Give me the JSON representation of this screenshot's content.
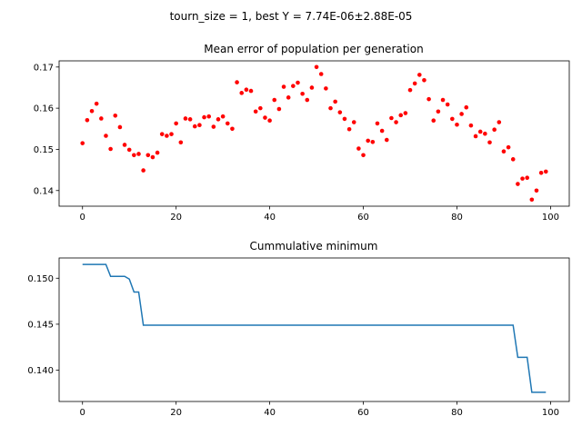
{
  "figure": {
    "suptitle": "tourn_size = 1, best Y = 7.74E-06±2.88E-05"
  },
  "chart_data": [
    {
      "type": "scatter",
      "title": "Mean error of population per generation",
      "xlabel": "",
      "ylabel": "",
      "xlim": [
        -5,
        104
      ],
      "ylim": [
        0.1362,
        0.1715
      ],
      "xticks": [
        0,
        20,
        40,
        60,
        80,
        100
      ],
      "yticks": [
        0.14,
        0.15,
        0.16,
        0.17
      ],
      "ytick_labels": [
        "0.14",
        "0.15",
        "0.16",
        "0.17"
      ],
      "marker_color": "#ff0000",
      "grid": false,
      "x": [
        0,
        1,
        2,
        3,
        4,
        5,
        6,
        7,
        8,
        9,
        10,
        11,
        12,
        13,
        14,
        15,
        16,
        17,
        18,
        19,
        20,
        21,
        22,
        23,
        24,
        25,
        26,
        27,
        28,
        29,
        30,
        31,
        32,
        33,
        34,
        35,
        36,
        37,
        38,
        39,
        40,
        41,
        42,
        43,
        44,
        45,
        46,
        47,
        48,
        49,
        50,
        51,
        52,
        53,
        54,
        55,
        56,
        57,
        58,
        59,
        60,
        61,
        62,
        63,
        64,
        65,
        66,
        67,
        68,
        69,
        70,
        71,
        72,
        73,
        74,
        75,
        76,
        77,
        78,
        79,
        80,
        81,
        82,
        83,
        84,
        85,
        86,
        87,
        88,
        89,
        90,
        91,
        92,
        93,
        94,
        95,
        96,
        97,
        98,
        99
      ],
      "y": [
        0.1515,
        0.1571,
        0.1593,
        0.1611,
        0.1575,
        0.1533,
        0.1501,
        0.1582,
        0.1554,
        0.1511,
        0.1499,
        0.1486,
        0.1489,
        0.1449,
        0.1486,
        0.1481,
        0.1492,
        0.1537,
        0.1533,
        0.1537,
        0.1563,
        0.1517,
        0.1575,
        0.1573,
        0.1556,
        0.1559,
        0.1578,
        0.158,
        0.1555,
        0.1573,
        0.158,
        0.1563,
        0.155,
        0.1663,
        0.1637,
        0.1645,
        0.1642,
        0.1592,
        0.16,
        0.1577,
        0.157,
        0.162,
        0.1598,
        0.1652,
        0.1626,
        0.1654,
        0.1662,
        0.1635,
        0.162,
        0.165,
        0.17,
        0.1683,
        0.1648,
        0.16,
        0.1616,
        0.159,
        0.1574,
        0.1549,
        0.1566,
        0.1502,
        0.1486,
        0.1521,
        0.1518,
        0.1563,
        0.1545,
        0.1523,
        0.1576,
        0.1566,
        0.1583,
        0.1588,
        0.1644,
        0.166,
        0.1681,
        0.1668,
        0.1622,
        0.157,
        0.1592,
        0.162,
        0.1609,
        0.1574,
        0.156,
        0.1586,
        0.1602,
        0.1558,
        0.1532,
        0.1543,
        0.1538,
        0.1517,
        0.1548,
        0.1566,
        0.1495,
        0.1505,
        0.1476,
        0.1416,
        0.1429,
        0.1431,
        0.1378,
        0.14,
        0.1443,
        0.1446
      ]
    },
    {
      "type": "line",
      "title": "Cummulative minimum",
      "xlabel": "",
      "ylabel": "",
      "xlim": [
        -5,
        104
      ],
      "ylim": [
        0.1366,
        0.1522
      ],
      "xticks": [
        0,
        20,
        40,
        60,
        80,
        100
      ],
      "yticks": [
        0.14,
        0.145,
        0.15
      ],
      "ytick_labels": [
        "0.140",
        "0.145",
        "0.150"
      ],
      "line_color": "#1f77b4",
      "grid": false,
      "x": [
        0,
        1,
        2,
        3,
        4,
        5,
        6,
        7,
        8,
        9,
        10,
        11,
        12,
        13,
        14,
        15,
        16,
        17,
        18,
        19,
        20,
        21,
        22,
        23,
        24,
        25,
        26,
        27,
        28,
        29,
        30,
        31,
        32,
        33,
        34,
        35,
        36,
        37,
        38,
        39,
        40,
        41,
        42,
        43,
        44,
        45,
        46,
        47,
        48,
        49,
        50,
        51,
        52,
        53,
        54,
        55,
        56,
        57,
        58,
        59,
        60,
        61,
        62,
        63,
        64,
        65,
        66,
        67,
        68,
        69,
        70,
        71,
        72,
        73,
        74,
        75,
        76,
        77,
        78,
        79,
        80,
        81,
        82,
        83,
        84,
        85,
        86,
        87,
        88,
        89,
        90,
        91,
        92,
        93,
        94,
        95,
        96,
        97,
        98,
        99
      ],
      "y": [
        0.1515,
        0.1515,
        0.1515,
        0.1515,
        0.1515,
        0.1515,
        0.1502,
        0.1502,
        0.1502,
        0.1502,
        0.1499,
        0.1485,
        0.1485,
        0.1449,
        0.1449,
        0.1449,
        0.1449,
        0.1449,
        0.1449,
        0.1449,
        0.1449,
        0.1449,
        0.1449,
        0.1449,
        0.1449,
        0.1449,
        0.1449,
        0.1449,
        0.1449,
        0.1449,
        0.1449,
        0.1449,
        0.1449,
        0.1449,
        0.1449,
        0.1449,
        0.1449,
        0.1449,
        0.1449,
        0.1449,
        0.1449,
        0.1449,
        0.1449,
        0.1449,
        0.1449,
        0.1449,
        0.1449,
        0.1449,
        0.1449,
        0.1449,
        0.1449,
        0.1449,
        0.1449,
        0.1449,
        0.1449,
        0.1449,
        0.1449,
        0.1449,
        0.1449,
        0.1449,
        0.1449,
        0.1449,
        0.1449,
        0.1449,
        0.1449,
        0.1449,
        0.1449,
        0.1449,
        0.1449,
        0.1449,
        0.1449,
        0.1449,
        0.1449,
        0.1449,
        0.1449,
        0.1449,
        0.1449,
        0.1449,
        0.1449,
        0.1449,
        0.1449,
        0.1449,
        0.1449,
        0.1449,
        0.1449,
        0.1449,
        0.1449,
        0.1449,
        0.1449,
        0.1449,
        0.1449,
        0.1449,
        0.1449,
        0.1414,
        0.1414,
        0.1414,
        0.1376,
        0.1376,
        0.1376,
        0.1376
      ]
    }
  ]
}
